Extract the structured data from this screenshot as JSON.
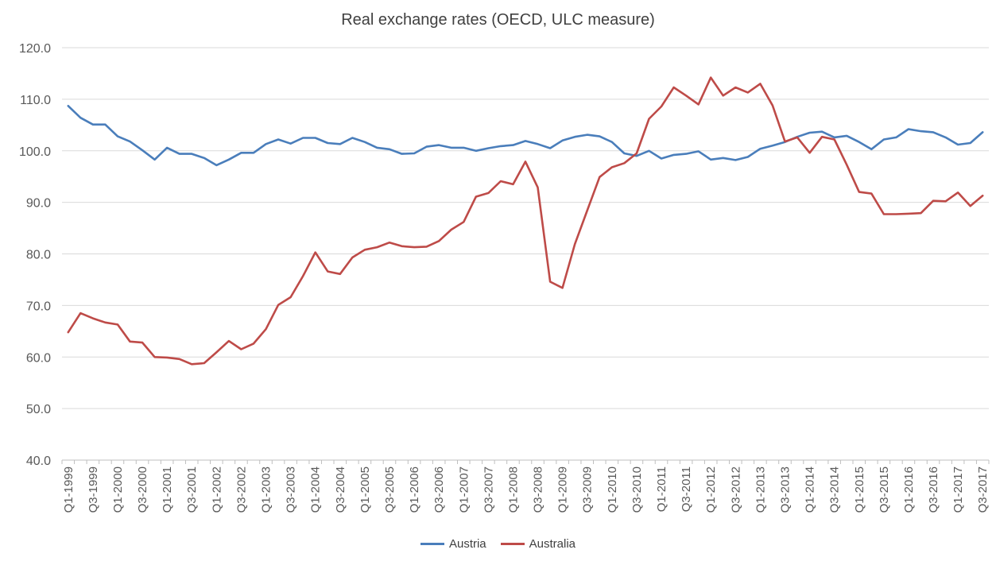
{
  "chart_data": {
    "type": "line",
    "title": "Real exchange rates  (OECD, ULC measure)",
    "xlabel": "",
    "ylabel": "",
    "ylim": [
      40,
      120
    ],
    "yticks": [
      "40.0",
      "50.0",
      "60.0",
      "70.0",
      "80.0",
      "90.0",
      "100.0",
      "110.0",
      "120.0"
    ],
    "grid": "horizontal",
    "legend_position": "bottom",
    "x": [
      "Q1-1999",
      "Q2-1999",
      "Q3-1999",
      "Q4-1999",
      "Q1-2000",
      "Q2-2000",
      "Q3-2000",
      "Q4-2000",
      "Q1-2001",
      "Q2-2001",
      "Q3-2001",
      "Q4-2001",
      "Q1-2002",
      "Q2-2002",
      "Q3-2002",
      "Q4-2002",
      "Q1-2003",
      "Q2-2003",
      "Q3-2003",
      "Q4-2003",
      "Q1-2004",
      "Q2-2004",
      "Q3-2004",
      "Q4-2004",
      "Q1-2005",
      "Q2-2005",
      "Q3-2005",
      "Q4-2005",
      "Q1-2006",
      "Q2-2006",
      "Q3-2006",
      "Q4-2006",
      "Q1-2007",
      "Q2-2007",
      "Q3-2007",
      "Q4-2007",
      "Q1-2008",
      "Q2-2008",
      "Q3-2008",
      "Q4-2008",
      "Q1-2009",
      "Q2-2009",
      "Q3-2009",
      "Q4-2009",
      "Q1-2010",
      "Q2-2010",
      "Q3-2010",
      "Q4-2010",
      "Q1-2011",
      "Q2-2011",
      "Q3-2011",
      "Q4-2011",
      "Q1-2012",
      "Q2-2012",
      "Q3-2012",
      "Q4-2012",
      "Q1-2013",
      "Q2-2013",
      "Q3-2013",
      "Q4-2013",
      "Q1-2014",
      "Q2-2014",
      "Q3-2014",
      "Q4-2014",
      "Q1-2015",
      "Q2-2015",
      "Q3-2015",
      "Q4-2015",
      "Q1-2016",
      "Q2-2016",
      "Q3-2016",
      "Q4-2016",
      "Q1-2017",
      "Q2-2017",
      "Q3-2017"
    ],
    "xtick_labels": [
      "Q1-1999",
      "Q3-1999",
      "Q1-2000",
      "Q3-2000",
      "Q1-2001",
      "Q3-2001",
      "Q1-2002",
      "Q3-2002",
      "Q1-2003",
      "Q3-2003",
      "Q1-2004",
      "Q3-2004",
      "Q1-2005",
      "Q3-2005",
      "Q1-2006",
      "Q3-2006",
      "Q1-2007",
      "Q3-2007",
      "Q1-2008",
      "Q3-2008",
      "Q1-2009",
      "Q3-2009",
      "Q1-2010",
      "Q3-2010",
      "Q1-2011",
      "Q3-2011",
      "Q1-2012",
      "Q3-2012",
      "Q1-2013",
      "Q3-2013",
      "Q1-2014",
      "Q3-2014",
      "Q1-2015",
      "Q3-2015",
      "Q1-2016",
      "Q3-2016",
      "Q1-2017",
      "Q3-2017"
    ],
    "series": [
      {
        "name": "Austria",
        "color": "#4a7ebb",
        "values": [
          108.7,
          106.4,
          105.1,
          105.1,
          102.8,
          101.8,
          100.1,
          98.3,
          100.6,
          99.4,
          99.4,
          98.6,
          97.2,
          98.3,
          99.6,
          99.6,
          101.3,
          102.2,
          101.4,
          102.5,
          102.5,
          101.5,
          101.3,
          102.5,
          101.7,
          100.6,
          100.3,
          99.4,
          99.5,
          100.8,
          101.1,
          100.6,
          100.6,
          100.0,
          100.5,
          100.9,
          101.1,
          101.9,
          101.3,
          100.5,
          102.0,
          102.7,
          103.1,
          102.8,
          101.7,
          99.5,
          99.0,
          100.0,
          98.5,
          99.2,
          99.4,
          99.9,
          98.3,
          98.6,
          98.2,
          98.8,
          100.4,
          101.0,
          101.7,
          102.7,
          103.5,
          103.7,
          102.6,
          102.9,
          101.7,
          100.3,
          102.2,
          102.6,
          104.2,
          103.8,
          103.6,
          102.6,
          101.2,
          101.5,
          103.6
        ]
      },
      {
        "name": "Australia",
        "color": "#be4b48",
        "values": [
          64.8,
          68.5,
          67.5,
          66.7,
          66.3,
          63.0,
          62.8,
          60.0,
          59.9,
          59.6,
          58.6,
          58.8,
          60.9,
          63.1,
          61.5,
          62.6,
          65.4,
          70.1,
          71.6,
          75.7,
          80.3,
          76.6,
          76.1,
          79.3,
          80.8,
          81.3,
          82.2,
          81.5,
          81.3,
          81.4,
          82.5,
          84.7,
          86.2,
          91.1,
          91.8,
          94.1,
          93.5,
          97.9,
          92.9,
          74.6,
          73.4,
          81.9,
          88.4,
          94.9,
          96.8,
          97.6,
          99.5,
          106.2,
          108.6,
          112.3,
          110.7,
          109.0,
          114.2,
          110.7,
          112.3,
          111.3,
          113.0,
          108.8,
          101.8,
          102.6,
          99.6,
          102.7,
          102.2,
          97.3,
          92.0,
          91.7,
          87.7,
          87.7,
          87.8,
          87.9,
          90.3,
          90.2,
          91.9,
          89.3,
          91.3
        ]
      }
    ]
  }
}
